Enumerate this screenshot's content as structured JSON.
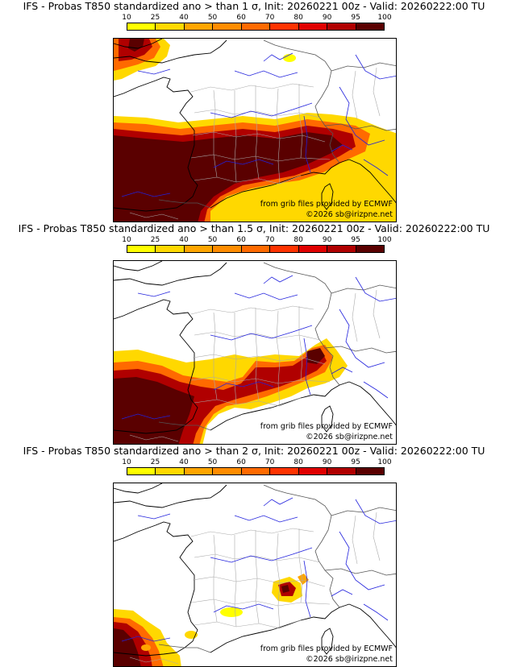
{
  "colors": {
    "bin_10": "#ffff00",
    "bin_25": "#ffd800",
    "bin_40": "#ffa500",
    "bin_50": "#ff8c00",
    "bin_60": "#ff6a00",
    "bin_70": "#ff3300",
    "bin_80": "#e00000",
    "bin_90": "#b00000",
    "bin_95": "#7a0000",
    "bin_100": "#5a0000",
    "border": "#555555",
    "region": "#aaaaaa",
    "river": "#2222dd",
    "coast": "#000000"
  },
  "scale": {
    "labels": [
      "10",
      "25",
      "40",
      "50",
      "60",
      "70",
      "80",
      "90",
      "95",
      "100"
    ]
  },
  "panels": [
    {
      "title": "IFS - Probas T850  standardized ano > than 1 σ, Init: 20260221 00z - Valid: 20260222:00 TU",
      "credit_source": "from grib files provided by ECMWF",
      "credit_copyright": "©2026 sb@irizpne.net"
    },
    {
      "title": "IFS - Probas T850  standardized ano > than 1.5 σ, Init: 20260221 00z - Valid: 20260222:00 TU",
      "credit_source": "from grib files provided by ECMWF",
      "credit_copyright": "©2026 sb@irizpne.net"
    },
    {
      "title": "IFS - Probas T850  standardized ano > than 2 σ, Init: 20260221 00z - Valid: 20260222:00 TU",
      "credit_source": "from grib files provided by ECMWF",
      "credit_copyright": "©2026 sb@irizpne.net"
    }
  ]
}
